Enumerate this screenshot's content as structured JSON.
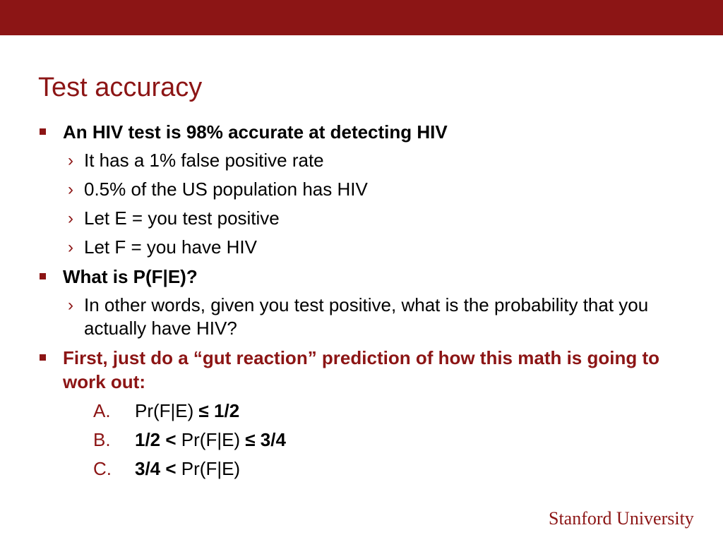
{
  "slide": {
    "title": "Test accuracy",
    "bullets": [
      {
        "text": "An HIV test is 98% accurate at detecting HIV",
        "sub": [
          "It has a 1% false positive rate",
          "0.5% of the US population has HIV",
          "Let E = you test positive",
          "Let F = you have HIV"
        ]
      },
      {
        "text": "What is P(F|E)?",
        "sub": [
          "In other words, given you test positive, what is the probability that you actually have HIV?"
        ]
      },
      {
        "text": "First, just do a “gut reaction” prediction of how this math is going to work out:",
        "color": "#8c1515"
      }
    ],
    "options": [
      {
        "letter": "A.",
        "pre": "",
        "mid": "Pr(F|E) ",
        "post": "≤ 1/2"
      },
      {
        "letter": "B.",
        "pre": "1/2 < ",
        "mid": "Pr(F|E) ",
        "post": "≤ 3/4"
      },
      {
        "letter": "C.",
        "pre": "3/4 < ",
        "mid": "Pr(F|E)",
        "post": ""
      }
    ]
  },
  "footer": {
    "logo_text": "Stanford University"
  },
  "colors": {
    "brand": "#8c1515",
    "text": "#000000",
    "background": "#ffffff"
  },
  "icons": {
    "bullet": "square-bullet-icon",
    "sub_bullet": "chevron-right-icon"
  }
}
